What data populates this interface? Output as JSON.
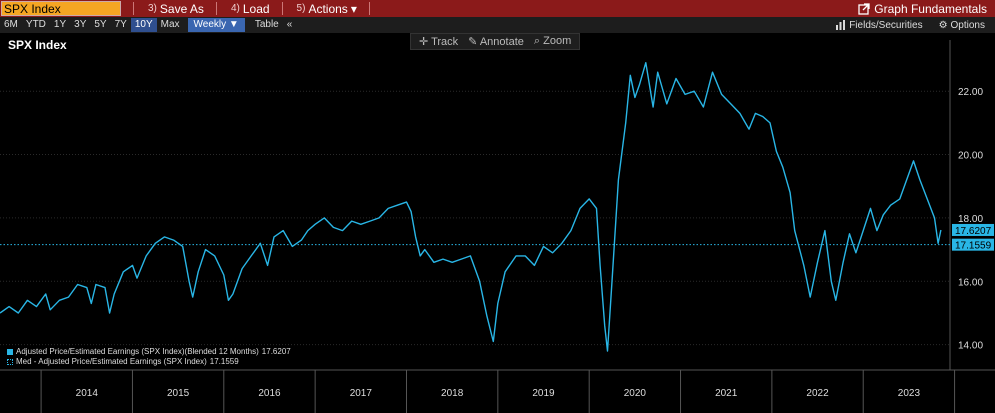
{
  "toolbar": {
    "ticker": "SPX Index",
    "save_num": "3)",
    "save_label": "Save As",
    "load_num": "4)",
    "load_label": "Load",
    "actions_num": "5)",
    "actions_label": "Actions",
    "actions_caret": "▾",
    "graph_label": "Graph Fundamentals"
  },
  "rangebar": {
    "ranges": [
      "6M",
      "YTD",
      "1Y",
      "3Y",
      "5Y",
      "7Y",
      "10Y",
      "Max"
    ],
    "active_range": "10Y",
    "frequency": "Weekly ▼",
    "table_label": "Table",
    "collapse_label": "«",
    "fields_label": "Fields/Securities",
    "options_label": "Options"
  },
  "chart_tools": {
    "track": "Track",
    "annotate": "Annotate",
    "zoom": "Zoom"
  },
  "chart_data": {
    "type": "line",
    "title": "SPX Index",
    "y_ticks": [
      "14.00",
      "16.00",
      "18.00",
      "20.00",
      "22.00"
    ],
    "ylim": [
      13.2,
      23.3
    ],
    "x_labels": [
      "2014",
      "2015",
      "2016",
      "2017",
      "2018",
      "2019",
      "2020",
      "2021",
      "2022",
      "2023"
    ],
    "xlim": [
      2013.55,
      2023.95
    ],
    "series": [
      {
        "name": "Adjusted Price/Estimated Earnings (SPX Index)(Blended 12 Months)",
        "last_value": "17.6207",
        "color": "#29b6e6",
        "points": [
          [
            2013.55,
            15.0
          ],
          [
            2013.65,
            15.2
          ],
          [
            2013.75,
            15.0
          ],
          [
            2013.85,
            15.4
          ],
          [
            2013.95,
            15.2
          ],
          [
            2014.05,
            15.6
          ],
          [
            2014.1,
            15.1
          ],
          [
            2014.2,
            15.4
          ],
          [
            2014.3,
            15.5
          ],
          [
            2014.4,
            15.9
          ],
          [
            2014.5,
            15.8
          ],
          [
            2014.55,
            15.3
          ],
          [
            2014.6,
            15.9
          ],
          [
            2014.7,
            15.8
          ],
          [
            2014.75,
            15.0
          ],
          [
            2014.8,
            15.6
          ],
          [
            2014.9,
            16.3
          ],
          [
            2015.0,
            16.5
          ],
          [
            2015.05,
            16.1
          ],
          [
            2015.15,
            16.8
          ],
          [
            2015.25,
            17.2
          ],
          [
            2015.35,
            17.4
          ],
          [
            2015.45,
            17.3
          ],
          [
            2015.55,
            17.1
          ],
          [
            2015.62,
            16.0
          ],
          [
            2015.66,
            15.5
          ],
          [
            2015.72,
            16.3
          ],
          [
            2015.8,
            17.0
          ],
          [
            2015.9,
            16.8
          ],
          [
            2016.0,
            16.2
          ],
          [
            2016.05,
            15.4
          ],
          [
            2016.1,
            15.6
          ],
          [
            2016.2,
            16.4
          ],
          [
            2016.3,
            16.8
          ],
          [
            2016.4,
            17.2
          ],
          [
            2016.48,
            16.5
          ],
          [
            2016.55,
            17.4
          ],
          [
            2016.65,
            17.6
          ],
          [
            2016.75,
            17.1
          ],
          [
            2016.85,
            17.3
          ],
          [
            2016.92,
            17.6
          ],
          [
            2017.0,
            17.8
          ],
          [
            2017.1,
            18.0
          ],
          [
            2017.2,
            17.7
          ],
          [
            2017.3,
            17.6
          ],
          [
            2017.4,
            17.9
          ],
          [
            2017.5,
            17.8
          ],
          [
            2017.6,
            17.9
          ],
          [
            2017.7,
            18.0
          ],
          [
            2017.8,
            18.3
          ],
          [
            2017.9,
            18.4
          ],
          [
            2018.0,
            18.5
          ],
          [
            2018.05,
            18.2
          ],
          [
            2018.1,
            17.4
          ],
          [
            2018.15,
            16.8
          ],
          [
            2018.2,
            17.0
          ],
          [
            2018.3,
            16.6
          ],
          [
            2018.4,
            16.7
          ],
          [
            2018.5,
            16.6
          ],
          [
            2018.6,
            16.7
          ],
          [
            2018.7,
            16.8
          ],
          [
            2018.8,
            16.0
          ],
          [
            2018.88,
            14.9
          ],
          [
            2018.95,
            14.1
          ],
          [
            2019.0,
            15.3
          ],
          [
            2019.08,
            16.3
          ],
          [
            2019.2,
            16.8
          ],
          [
            2019.3,
            16.8
          ],
          [
            2019.4,
            16.5
          ],
          [
            2019.5,
            17.1
          ],
          [
            2019.6,
            16.9
          ],
          [
            2019.7,
            17.2
          ],
          [
            2019.8,
            17.6
          ],
          [
            2019.9,
            18.3
          ],
          [
            2020.0,
            18.6
          ],
          [
            2020.08,
            18.3
          ],
          [
            2020.12,
            16.5
          ],
          [
            2020.17,
            14.6
          ],
          [
            2020.2,
            13.8
          ],
          [
            2020.25,
            16.0
          ],
          [
            2020.32,
            19.2
          ],
          [
            2020.4,
            21.0
          ],
          [
            2020.45,
            22.5
          ],
          [
            2020.5,
            21.8
          ],
          [
            2020.55,
            22.2
          ],
          [
            2020.62,
            22.9
          ],
          [
            2020.7,
            21.5
          ],
          [
            2020.75,
            22.6
          ],
          [
            2020.85,
            21.6
          ],
          [
            2020.95,
            22.4
          ],
          [
            2021.05,
            21.9
          ],
          [
            2021.15,
            22.0
          ],
          [
            2021.25,
            21.5
          ],
          [
            2021.35,
            22.6
          ],
          [
            2021.45,
            21.9
          ],
          [
            2021.55,
            21.6
          ],
          [
            2021.65,
            21.3
          ],
          [
            2021.75,
            20.8
          ],
          [
            2021.82,
            21.3
          ],
          [
            2021.9,
            21.2
          ],
          [
            2021.98,
            21.0
          ],
          [
            2022.05,
            20.1
          ],
          [
            2022.12,
            19.6
          ],
          [
            2022.2,
            18.8
          ],
          [
            2022.25,
            17.6
          ],
          [
            2022.35,
            16.5
          ],
          [
            2022.42,
            15.5
          ],
          [
            2022.5,
            16.6
          ],
          [
            2022.58,
            17.6
          ],
          [
            2022.65,
            16.0
          ],
          [
            2022.7,
            15.4
          ],
          [
            2022.78,
            16.6
          ],
          [
            2022.85,
            17.5
          ],
          [
            2022.92,
            16.9
          ],
          [
            2023.0,
            17.6
          ],
          [
            2023.08,
            18.3
          ],
          [
            2023.15,
            17.6
          ],
          [
            2023.22,
            18.1
          ],
          [
            2023.3,
            18.4
          ],
          [
            2023.4,
            18.6
          ],
          [
            2023.5,
            19.4
          ],
          [
            2023.55,
            19.8
          ],
          [
            2023.62,
            19.2
          ],
          [
            2023.7,
            18.6
          ],
          [
            2023.78,
            18.0
          ],
          [
            2023.82,
            17.2
          ],
          [
            2023.85,
            17.62
          ]
        ]
      },
      {
        "name": "Med - Adjusted Price/Estimated Earnings (SPX Index)",
        "last_value": "17.1559",
        "color": "#29b6e6",
        "value": 17.1559
      }
    ]
  }
}
